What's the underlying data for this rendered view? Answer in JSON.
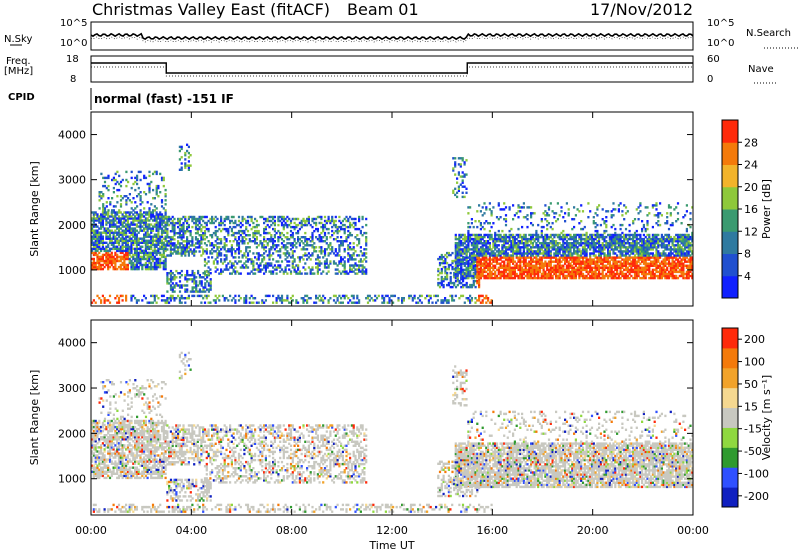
{
  "header": {
    "station": "Christmas Valley East (fitACF)",
    "beam": "Beam 01",
    "date": "17/Nov/2012"
  },
  "top_panels": {
    "nsky": {
      "label": "N.Sky",
      "ticks_left": [
        "10^5",
        "10^0"
      ],
      "right_label": "N.Search",
      "ticks_right": [
        "10^5",
        "10^0"
      ]
    },
    "freq": {
      "label_line1": "Freq.",
      "label_line2": "[MHz]",
      "ticks_left": [
        "18",
        "8"
      ],
      "right_label": "Nave",
      "ticks_right": [
        "60",
        "0"
      ]
    },
    "cpid": {
      "label": "CPID",
      "value": "normal (fast) -151 IF"
    }
  },
  "colors": {
    "power_scale": [
      "#1020ff",
      "#2050d0",
      "#2f7aa0",
      "#3a9a70",
      "#8ec83a",
      "#f2b32a",
      "#f47a0a",
      "#ff2a0a"
    ],
    "velocity_scale": [
      "#1020c0",
      "#2f50ff",
      "#2f9a2f",
      "#8fd840",
      "#c8c8c0",
      "#f5d890",
      "#f2a32a",
      "#f47a0a",
      "#ff2a0a"
    ]
  },
  "chart_data": [
    {
      "type": "heatmap",
      "panel": "power",
      "ylabel": "Slant Range [km]",
      "y_ticks": [
        "1000",
        "2000",
        "3000",
        "4000"
      ],
      "ylim": [
        200,
        4500
      ],
      "x_ticks": [
        "00:00",
        "04:00",
        "08:00",
        "12:00",
        "16:00",
        "20:00",
        "00:00"
      ],
      "xlim_hours": [
        0,
        24
      ],
      "colorbar_label": "Power [dB]",
      "colorbar_ticks": [
        "4",
        "8",
        "12",
        "16",
        "20",
        "24",
        "28"
      ],
      "colorbar_range": [
        0,
        30
      ]
    },
    {
      "type": "heatmap",
      "panel": "velocity",
      "ylabel": "Slant Range [km]",
      "y_ticks": [
        "1000",
        "2000",
        "3000",
        "4000"
      ],
      "ylim": [
        200,
        4500
      ],
      "x_ticks": [
        "00:00",
        "04:00",
        "08:00",
        "12:00",
        "16:00",
        "20:00",
        "00:00"
      ],
      "xlim_hours": [
        0,
        24
      ],
      "xlabel": "Time UT",
      "colorbar_label": "Velocity [m s⁻¹]",
      "colorbar_ticks": [
        "200",
        "100",
        "50",
        "15",
        "-15",
        "-50",
        "-100",
        "-200"
      ],
      "colorbar_range": [
        -250,
        250
      ]
    }
  ]
}
